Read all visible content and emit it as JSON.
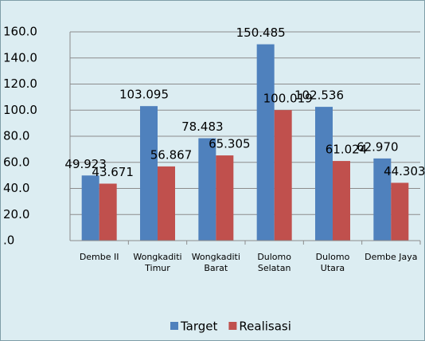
{
  "chart_data": {
    "type": "bar",
    "categories": [
      "Dembe II",
      "Wongkaditi Timur",
      "Wongkaditi Barat",
      "Dulomo Selatan",
      "Dulomo Utara",
      "Dembe Jaya"
    ],
    "series": [
      {
        "name": "Target",
        "color": "#4f81bd",
        "values": [
          49.923,
          103.095,
          78.483,
          150.485,
          102.536,
          62.97
        ],
        "value_labels": [
          "49.923",
          "103.095",
          "78.483",
          "150.485",
          "102.536",
          "62.970"
        ]
      },
      {
        "name": "Realisasi",
        "color": "#c0504d",
        "values": [
          43.671,
          56.867,
          65.305,
          100.019,
          61.024,
          44.303
        ]
      }
    ],
    "ylim": [
      0,
      160
    ],
    "yticks": [
      {
        "value": 0,
        "label": ".0"
      },
      {
        "value": 20,
        "label": "20.0"
      },
      {
        "value": 40,
        "label": "40.0"
      },
      {
        "value": 60,
        "label": "60.0"
      },
      {
        "value": 80,
        "label": "80.0"
      },
      {
        "value": 100,
        "label": "100.0"
      },
      {
        "value": 120,
        "label": "120.0"
      },
      {
        "value": 140,
        "label": "140.0"
      },
      {
        "value": 160,
        "label": "160.0"
      }
    ],
    "grid": true,
    "legend": "bottom"
  }
}
